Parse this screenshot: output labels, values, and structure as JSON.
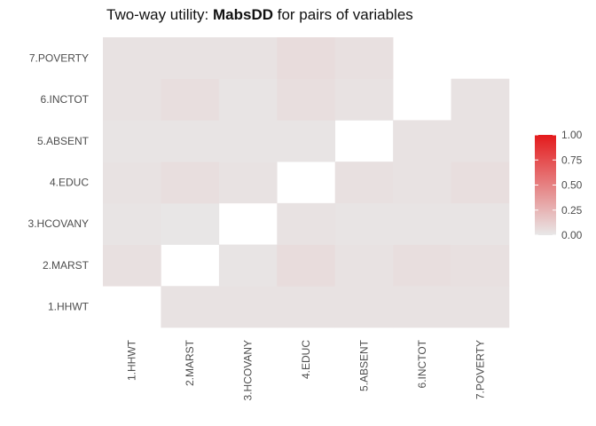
{
  "title": {
    "prefix": "Two-way utility: ",
    "metric": "MabsDD",
    "suffix": " for pairs of variables"
  },
  "chart_data": {
    "type": "heatmap",
    "variables": [
      "1.HHWT",
      "2.MARST",
      "3.HCOVANY",
      "4.EDUC",
      "5.ABSENT",
      "6.INCTOT",
      "7.POVERTY"
    ],
    "cells": [
      {
        "x": "1.HHWT",
        "y": "2.MARST",
        "value": 0.04
      },
      {
        "x": "1.HHWT",
        "y": "3.HCOVANY",
        "value": 0.02
      },
      {
        "x": "1.HHWT",
        "y": "4.EDUC",
        "value": 0.03
      },
      {
        "x": "1.HHWT",
        "y": "5.ABSENT",
        "value": 0.02
      },
      {
        "x": "1.HHWT",
        "y": "6.INCTOT",
        "value": 0.03
      },
      {
        "x": "1.HHWT",
        "y": "7.POVERTY",
        "value": 0.03
      },
      {
        "x": "2.MARST",
        "y": "1.HHWT",
        "value": 0.03
      },
      {
        "x": "2.MARST",
        "y": "3.HCOVANY",
        "value": 0.01
      },
      {
        "x": "2.MARST",
        "y": "4.EDUC",
        "value": 0.05
      },
      {
        "x": "2.MARST",
        "y": "5.ABSENT",
        "value": 0.02
      },
      {
        "x": "2.MARST",
        "y": "6.INCTOT",
        "value": 0.05
      },
      {
        "x": "2.MARST",
        "y": "7.POVERTY",
        "value": 0.03
      },
      {
        "x": "3.HCOVANY",
        "y": "1.HHWT",
        "value": 0.03
      },
      {
        "x": "3.HCOVANY",
        "y": "2.MARST",
        "value": 0.02
      },
      {
        "x": "3.HCOVANY",
        "y": "4.EDUC",
        "value": 0.03
      },
      {
        "x": "3.HCOVANY",
        "y": "5.ABSENT",
        "value": 0.02
      },
      {
        "x": "3.HCOVANY",
        "y": "6.INCTOT",
        "value": 0.02
      },
      {
        "x": "3.HCOVANY",
        "y": "7.POVERTY",
        "value": 0.03
      },
      {
        "x": "4.EDUC",
        "y": "1.HHWT",
        "value": 0.03
      },
      {
        "x": "4.EDUC",
        "y": "2.MARST",
        "value": 0.06
      },
      {
        "x": "4.EDUC",
        "y": "3.HCOVANY",
        "value": 0.03
      },
      {
        "x": "4.EDUC",
        "y": "5.ABSENT",
        "value": 0.02
      },
      {
        "x": "4.EDUC",
        "y": "6.INCTOT",
        "value": 0.05
      },
      {
        "x": "4.EDUC",
        "y": "7.POVERTY",
        "value": 0.06
      },
      {
        "x": "5.ABSENT",
        "y": "1.HHWT",
        "value": 0.03
      },
      {
        "x": "5.ABSENT",
        "y": "2.MARST",
        "value": 0.03
      },
      {
        "x": "5.ABSENT",
        "y": "3.HCOVANY",
        "value": 0.02
      },
      {
        "x": "5.ABSENT",
        "y": "4.EDUC",
        "value": 0.04
      },
      {
        "x": "5.ABSENT",
        "y": "6.INCTOT",
        "value": 0.03
      },
      {
        "x": "5.ABSENT",
        "y": "7.POVERTY",
        "value": 0.04
      },
      {
        "x": "6.INCTOT",
        "y": "1.HHWT",
        "value": 0.03
      },
      {
        "x": "6.INCTOT",
        "y": "2.MARST",
        "value": 0.05
      },
      {
        "x": "6.INCTOT",
        "y": "3.HCOVANY",
        "value": 0.02
      },
      {
        "x": "6.INCTOT",
        "y": "4.EDUC",
        "value": 0.03
      },
      {
        "x": "6.INCTOT",
        "y": "5.ABSENT",
        "value": 0.03
      },
      {
        "x": "7.POVERTY",
        "y": "1.HHWT",
        "value": 0.03
      },
      {
        "x": "7.POVERTY",
        "y": "2.MARST",
        "value": 0.04
      },
      {
        "x": "7.POVERTY",
        "y": "3.HCOVANY",
        "value": 0.02
      },
      {
        "x": "7.POVERTY",
        "y": "4.EDUC",
        "value": 0.05
      },
      {
        "x": "7.POVERTY",
        "y": "5.ABSENT",
        "value": 0.03
      },
      {
        "x": "7.POVERTY",
        "y": "6.INCTOT",
        "value": 0.03
      }
    ],
    "legend": {
      "position": "right",
      "limits": [
        0,
        1
      ],
      "ticks": [
        "0.00",
        "0.25",
        "0.50",
        "0.75",
        "1.00"
      ],
      "low_color": "#e8e8e8",
      "high_color": "#e41a1c"
    },
    "grid": false
  }
}
